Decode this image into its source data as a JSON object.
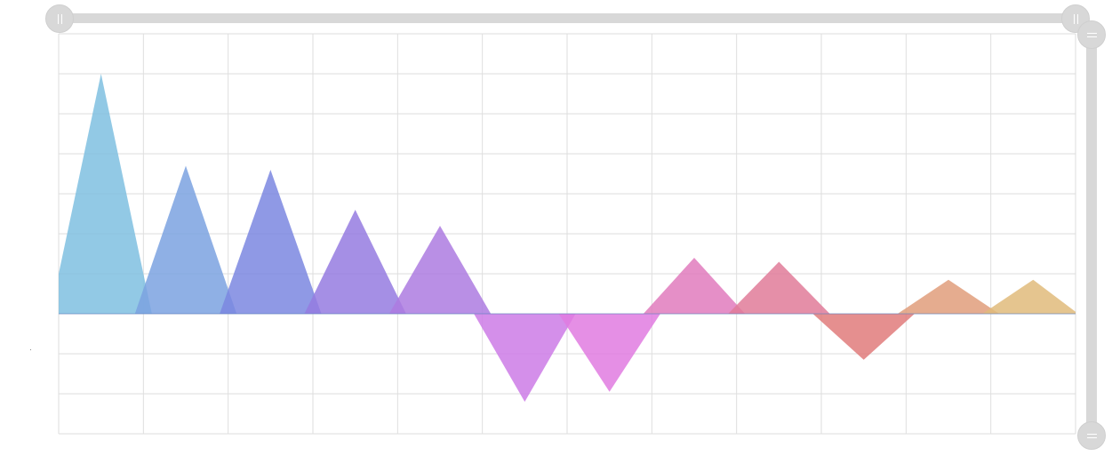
{
  "chart_data": {
    "type": "area",
    "categories": [
      "",
      "",
      "",
      "",
      "",
      "",
      "",
      "",
      "",
      "",
      "",
      ""
    ],
    "values": [
      6,
      3.7,
      3.6,
      2.6,
      2.2,
      -2.2,
      -1.95,
      1.4,
      1.3,
      -1.15,
      0.85,
      0.85
    ],
    "ylim": [
      -3,
      7
    ],
    "title": "",
    "xlabel": "",
    "ylabel": "",
    "grid": true,
    "legend": "none"
  },
  "colors": {
    "grid": "#dedede",
    "baseline": "#5b7fbf",
    "zoom_track": "#d8d8d8",
    "series": [
      "#7fc0e0",
      "#7ba2e0",
      "#7b87e0",
      "#957be0",
      "#ad7be0",
      "#cc7be6",
      "#e07be0",
      "#e07bbd",
      "#e07b99",
      "#e07b7b",
      "#e09e7b",
      "#e0bb7b"
    ]
  },
  "zoom": {
    "x_start_handle_icon": "grip-vertical-icon",
    "x_end_handle_icon": "grip-vertical-icon",
    "y_start_handle_icon": "grip-horizontal-icon",
    "y_end_handle_icon": "grip-horizontal-icon"
  }
}
